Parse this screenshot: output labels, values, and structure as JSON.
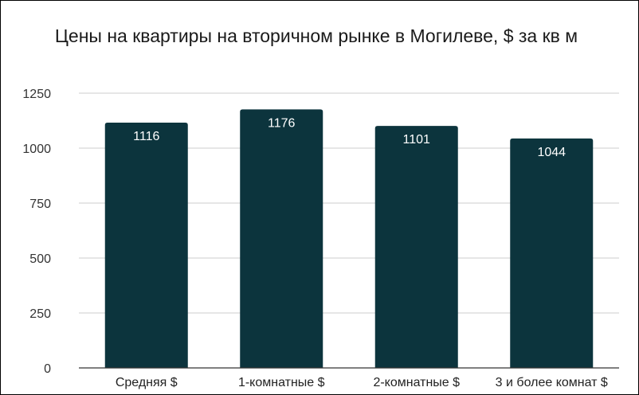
{
  "chart_data": {
    "type": "bar",
    "title": "Цены на квартиры на вторичном рынке в Могилеве, $ за кв м",
    "xlabel": "",
    "ylabel": "",
    "categories": [
      "Средняя $",
      "1-комнатные $",
      "2-комнатные $",
      "3 и более комнат $"
    ],
    "values": [
      1116,
      1176,
      1101,
      1044
    ],
    "data_labels": [
      "1116",
      "1176",
      "1101",
      "1044"
    ],
    "ylim": [
      0,
      1250
    ],
    "yticks": [
      0,
      250,
      500,
      750,
      1000,
      1250
    ],
    "ytick_labels": [
      "0",
      "250",
      "500",
      "750",
      "1000",
      "1250"
    ],
    "grid": true,
    "legend": "none",
    "bar_color": "#0c343d"
  }
}
